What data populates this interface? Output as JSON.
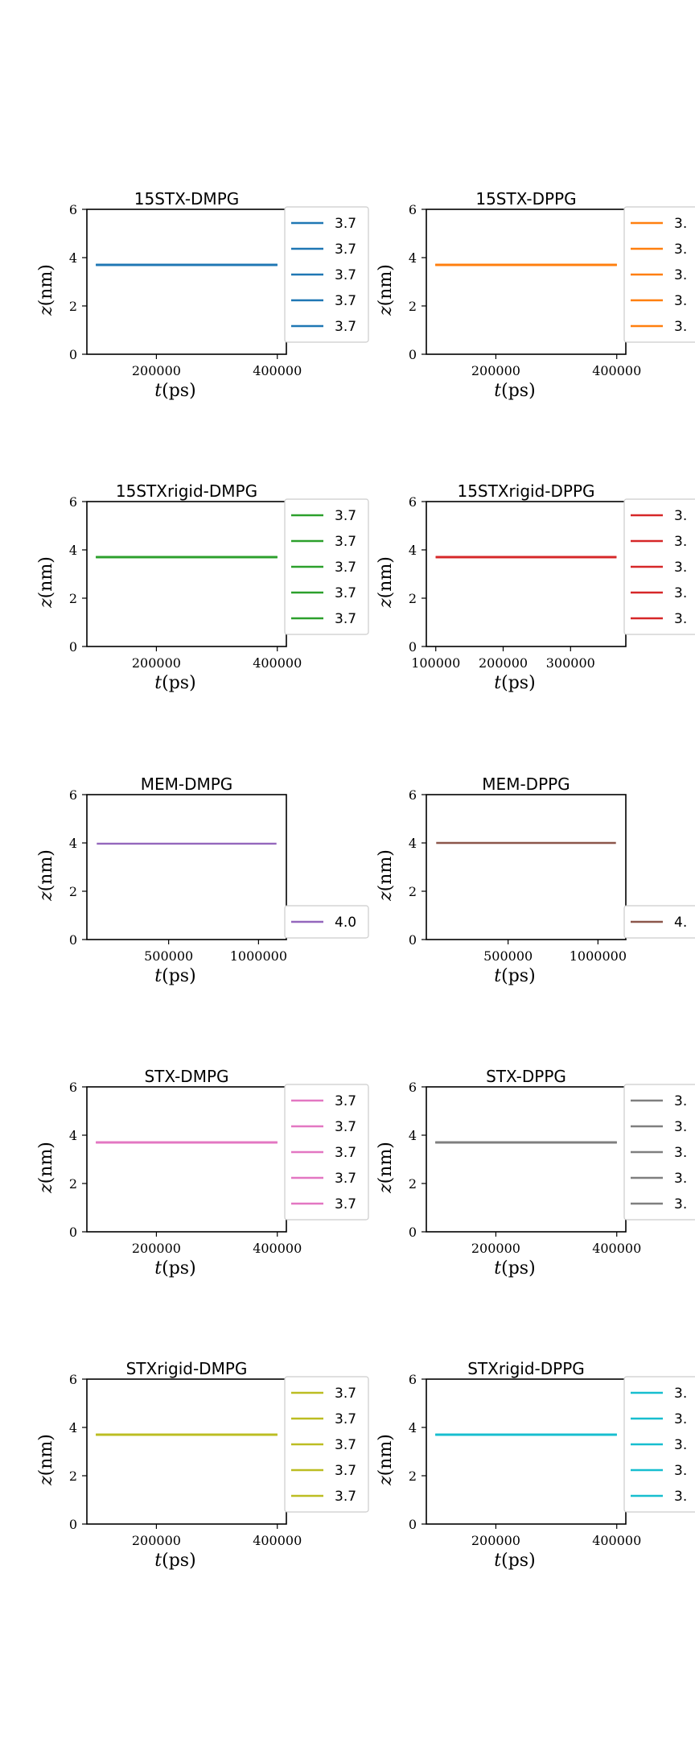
{
  "chart_data": [
    {
      "type": "line",
      "title": "15STX-DMPG",
      "xlabel": "t(ps)",
      "ylabel": "z(nm)",
      "ylim": [
        0,
        6
      ],
      "yticks": [
        "0",
        "2",
        "4",
        "6"
      ],
      "xlim": [
        85000,
        415000
      ],
      "xticks": [
        {
          "value": 200000,
          "label": "200000"
        },
        {
          "value": 400000,
          "label": "400000"
        }
      ],
      "color": "#1f77b4",
      "series": [
        {
          "name": "3.7",
          "x": [
            100000,
            400000
          ],
          "y": [
            3.7,
            3.7
          ]
        },
        {
          "name": "3.7",
          "x": [
            100000,
            400000
          ],
          "y": [
            3.7,
            3.7
          ]
        },
        {
          "name": "3.7",
          "x": [
            100000,
            400000
          ],
          "y": [
            3.7,
            3.7
          ]
        },
        {
          "name": "3.7",
          "x": [
            100000,
            400000
          ],
          "y": [
            3.7,
            3.7
          ]
        },
        {
          "name": "3.7",
          "x": [
            100000,
            400000
          ],
          "y": [
            3.7,
            3.7
          ]
        }
      ],
      "legend": "outside-right-top"
    },
    {
      "type": "line",
      "title": "15STX-DPPG",
      "xlabel": "t(ps)",
      "ylabel": "z(nm)",
      "ylim": [
        0,
        6
      ],
      "yticks": [
        "0",
        "2",
        "4",
        "6"
      ],
      "xlim": [
        85000,
        415000
      ],
      "xticks": [
        {
          "value": 200000,
          "label": "200000"
        },
        {
          "value": 400000,
          "label": "400000"
        }
      ],
      "color": "#ff7f0e",
      "series": [
        {
          "name": "3.",
          "x": [
            100000,
            400000
          ],
          "y": [
            3.7,
            3.7
          ]
        },
        {
          "name": "3.",
          "x": [
            100000,
            400000
          ],
          "y": [
            3.7,
            3.7
          ]
        },
        {
          "name": "3.",
          "x": [
            100000,
            400000
          ],
          "y": [
            3.7,
            3.7
          ]
        },
        {
          "name": "3.",
          "x": [
            100000,
            400000
          ],
          "y": [
            3.7,
            3.7
          ]
        },
        {
          "name": "3.",
          "x": [
            100000,
            400000
          ],
          "y": [
            3.7,
            3.7
          ]
        }
      ],
      "legend": "outside-right-top"
    },
    {
      "type": "line",
      "title": "15STXrigid-DMPG",
      "xlabel": "t(ps)",
      "ylabel": "z(nm)",
      "ylim": [
        0,
        6
      ],
      "yticks": [
        "0",
        "2",
        "4",
        "6"
      ],
      "xlim": [
        85000,
        415000
      ],
      "xticks": [
        {
          "value": 200000,
          "label": "200000"
        },
        {
          "value": 400000,
          "label": "400000"
        }
      ],
      "color": "#2ca02c",
      "series": [
        {
          "name": "3.7",
          "x": [
            100000,
            400000
          ],
          "y": [
            3.7,
            3.7
          ]
        },
        {
          "name": "3.7",
          "x": [
            100000,
            400000
          ],
          "y": [
            3.7,
            3.7
          ]
        },
        {
          "name": "3.7",
          "x": [
            100000,
            400000
          ],
          "y": [
            3.7,
            3.7
          ]
        },
        {
          "name": "3.7",
          "x": [
            100000,
            400000
          ],
          "y": [
            3.7,
            3.7
          ]
        },
        {
          "name": "3.7",
          "x": [
            100000,
            400000
          ],
          "y": [
            3.7,
            3.7
          ]
        }
      ],
      "legend": "outside-right-top"
    },
    {
      "type": "line",
      "title": "15STXrigid-DPPG",
      "xlabel": "t(ps)",
      "ylabel": "z(nm)",
      "ylim": [
        0,
        6
      ],
      "yticks": [
        "0",
        "2",
        "4",
        "6"
      ],
      "xlim": [
        86000,
        382000
      ],
      "xticks": [
        {
          "value": 100000,
          "label": "100000"
        },
        {
          "value": 200000,
          "label": "200000"
        },
        {
          "value": 300000,
          "label": "300000"
        }
      ],
      "color": "#d62728",
      "series": [
        {
          "name": "3.",
          "x": [
            100000,
            368000
          ],
          "y": [
            3.7,
            3.7
          ]
        },
        {
          "name": "3.",
          "x": [
            100000,
            368000
          ],
          "y": [
            3.7,
            3.7
          ]
        },
        {
          "name": "3.",
          "x": [
            100000,
            368000
          ],
          "y": [
            3.7,
            3.7
          ]
        },
        {
          "name": "3.",
          "x": [
            100000,
            368000
          ],
          "y": [
            3.7,
            3.7
          ]
        },
        {
          "name": "3.",
          "x": [
            100000,
            368000
          ],
          "y": [
            3.7,
            3.7
          ]
        }
      ],
      "legend": "outside-right-top"
    },
    {
      "type": "line",
      "title": "MEM-DMPG",
      "xlabel": "t(ps)",
      "ylabel": "z(nm)",
      "ylim": [
        0,
        6
      ],
      "yticks": [
        "0",
        "2",
        "4",
        "6"
      ],
      "xlim": [
        45000,
        1155000
      ],
      "xticks": [
        {
          "value": 500000,
          "label": "500000"
        },
        {
          "value": 1000000,
          "label": "1000000"
        }
      ],
      "color": "#9467bd",
      "series": [
        {
          "name": "4.0",
          "x": [
            100000,
            1100000
          ],
          "y": [
            3.97,
            3.97
          ]
        }
      ],
      "legend": "outside-right-bottom"
    },
    {
      "type": "line",
      "title": "MEM-DPPG",
      "xlabel": "t(ps)",
      "ylabel": "z(nm)",
      "ylim": [
        0,
        6
      ],
      "yticks": [
        "0",
        "2",
        "4",
        "6"
      ],
      "xlim": [
        45000,
        1155000
      ],
      "xticks": [
        {
          "value": 500000,
          "label": "500000"
        },
        {
          "value": 1000000,
          "label": "1000000"
        }
      ],
      "color": "#8c564b",
      "series": [
        {
          "name": "4.",
          "x": [
            100000,
            1100000
          ],
          "y": [
            4.0,
            4.0
          ]
        }
      ],
      "legend": "outside-right-bottom"
    },
    {
      "type": "line",
      "title": "STX-DMPG",
      "xlabel": "t(ps)",
      "ylabel": "z(nm)",
      "ylim": [
        0,
        6
      ],
      "yticks": [
        "0",
        "2",
        "4",
        "6"
      ],
      "xlim": [
        85000,
        415000
      ],
      "xticks": [
        {
          "value": 200000,
          "label": "200000"
        },
        {
          "value": 400000,
          "label": "400000"
        }
      ],
      "color": "#e377c2",
      "series": [
        {
          "name": "3.7",
          "x": [
            100000,
            400000
          ],
          "y": [
            3.7,
            3.7
          ]
        },
        {
          "name": "3.7",
          "x": [
            100000,
            400000
          ],
          "y": [
            3.7,
            3.7
          ]
        },
        {
          "name": "3.7",
          "x": [
            100000,
            400000
          ],
          "y": [
            3.7,
            3.7
          ]
        },
        {
          "name": "3.7",
          "x": [
            100000,
            400000
          ],
          "y": [
            3.7,
            3.7
          ]
        },
        {
          "name": "3.7",
          "x": [
            100000,
            400000
          ],
          "y": [
            3.7,
            3.7
          ]
        }
      ],
      "legend": "outside-right-top"
    },
    {
      "type": "line",
      "title": "STX-DPPG",
      "xlabel": "t(ps)",
      "ylabel": "z(nm)",
      "ylim": [
        0,
        6
      ],
      "yticks": [
        "0",
        "2",
        "4",
        "6"
      ],
      "xlim": [
        85000,
        415000
      ],
      "xticks": [
        {
          "value": 200000,
          "label": "200000"
        },
        {
          "value": 400000,
          "label": "400000"
        }
      ],
      "color": "#7f7f7f",
      "series": [
        {
          "name": "3.",
          "x": [
            100000,
            400000
          ],
          "y": [
            3.7,
            3.7
          ]
        },
        {
          "name": "3.",
          "x": [
            100000,
            400000
          ],
          "y": [
            3.7,
            3.7
          ]
        },
        {
          "name": "3.",
          "x": [
            100000,
            400000
          ],
          "y": [
            3.7,
            3.7
          ]
        },
        {
          "name": "3.",
          "x": [
            100000,
            400000
          ],
          "y": [
            3.7,
            3.7
          ]
        },
        {
          "name": "3.",
          "x": [
            100000,
            400000
          ],
          "y": [
            3.7,
            3.7
          ]
        }
      ],
      "legend": "outside-right-top"
    },
    {
      "type": "line",
      "title": "STXrigid-DMPG",
      "xlabel": "t(ps)",
      "ylabel": "z(nm)",
      "ylim": [
        0,
        6
      ],
      "yticks": [
        "0",
        "2",
        "4",
        "6"
      ],
      "xlim": [
        85000,
        415000
      ],
      "xticks": [
        {
          "value": 200000,
          "label": "200000"
        },
        {
          "value": 400000,
          "label": "400000"
        }
      ],
      "color": "#bcbd22",
      "series": [
        {
          "name": "3.7",
          "x": [
            100000,
            400000
          ],
          "y": [
            3.7,
            3.7
          ]
        },
        {
          "name": "3.7",
          "x": [
            100000,
            400000
          ],
          "y": [
            3.7,
            3.7
          ]
        },
        {
          "name": "3.7",
          "x": [
            100000,
            400000
          ],
          "y": [
            3.7,
            3.7
          ]
        },
        {
          "name": "3.7",
          "x": [
            100000,
            400000
          ],
          "y": [
            3.7,
            3.7
          ]
        },
        {
          "name": "3.7",
          "x": [
            100000,
            400000
          ],
          "y": [
            3.7,
            3.7
          ]
        }
      ],
      "legend": "outside-right-top"
    },
    {
      "type": "line",
      "title": "STXrigid-DPPG",
      "xlabel": "t(ps)",
      "ylabel": "z(nm)",
      "ylim": [
        0,
        6
      ],
      "yticks": [
        "0",
        "2",
        "4",
        "6"
      ],
      "xlim": [
        85000,
        415000
      ],
      "xticks": [
        {
          "value": 200000,
          "label": "200000"
        },
        {
          "value": 400000,
          "label": "400000"
        }
      ],
      "color": "#17becf",
      "series": [
        {
          "name": "3.",
          "x": [
            100000,
            400000
          ],
          "y": [
            3.7,
            3.7
          ]
        },
        {
          "name": "3.",
          "x": [
            100000,
            400000
          ],
          "y": [
            3.7,
            3.7
          ]
        },
        {
          "name": "3.",
          "x": [
            100000,
            400000
          ],
          "y": [
            3.7,
            3.7
          ]
        },
        {
          "name": "3.",
          "x": [
            100000,
            400000
          ],
          "y": [
            3.7,
            3.7
          ]
        },
        {
          "name": "3.",
          "x": [
            100000,
            400000
          ],
          "y": [
            3.7,
            3.7
          ]
        }
      ],
      "legend": "outside-right-top"
    }
  ]
}
